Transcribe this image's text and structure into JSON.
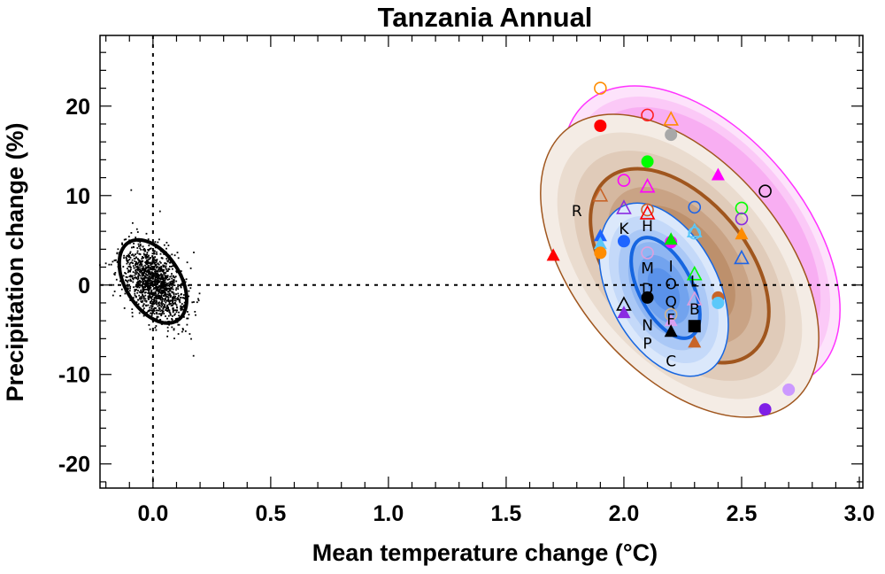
{
  "chart_data": {
    "type": "scatter",
    "title": "Tanzania Annual",
    "xlabel": "Mean temperature change (°C)",
    "ylabel": "Precipitation change (%)",
    "xlim": [
      -0.225,
      3.015
    ],
    "ylim": [
      -22.7,
      27.9
    ],
    "x_ticks": [
      "0.0",
      "0.5",
      "1.0",
      "1.5",
      "2.0",
      "2.5",
      "3.0"
    ],
    "y_ticks": [
      "-20",
      "-10",
      "0",
      "10",
      "20"
    ],
    "grid": false,
    "reference_lines": {
      "x": 0,
      "y": 0,
      "style": "dotted"
    },
    "contour_colors": {
      "brown_fills": [
        "#f4ece5",
        "#eadccf",
        "#e0cbb9",
        "#d5b8a0",
        "#c9a385",
        "#bd906c"
      ],
      "brown_line": "#a0561e",
      "blue_fills": [
        "#dbe8fb",
        "#c4d9f9",
        "#aac8f6",
        "#8fb6f2",
        "#72a3ee",
        "#5a92ea"
      ],
      "blue_line": "#1766e0",
      "magenta_fills": [
        "#fde3fb",
        "#fbc9f7",
        "#f8aef2"
      ],
      "magenta_line": "#ff33ff",
      "control_line": "#000000"
    },
    "points": [
      {
        "x": 1.9,
        "y": 22.0,
        "shape": "circle",
        "filled": false,
        "color": "#ff8c00"
      },
      {
        "x": 2.1,
        "y": 19.0,
        "shape": "circle",
        "filled": false,
        "color": "#ff2020"
      },
      {
        "x": 2.2,
        "y": 18.5,
        "shape": "triangle",
        "filled": false,
        "color": "#ff8c00"
      },
      {
        "x": 1.9,
        "y": 17.8,
        "shape": "circle",
        "filled": true,
        "color": "#ff0000"
      },
      {
        "x": 2.2,
        "y": 16.8,
        "shape": "circle",
        "filled": true,
        "color": "#a8a8a8"
      },
      {
        "x": 2.1,
        "y": 13.8,
        "shape": "circle",
        "filled": true,
        "color": "#00ff00"
      },
      {
        "x": 2.4,
        "y": 12.3,
        "shape": "triangle",
        "filled": true,
        "color": "#ff00ff"
      },
      {
        "x": 2.6,
        "y": 10.5,
        "shape": "circle",
        "filled": false,
        "color": "#000000"
      },
      {
        "x": 2.0,
        "y": 11.7,
        "shape": "circle",
        "filled": false,
        "color": "#ff00ff"
      },
      {
        "x": 2.1,
        "y": 11.0,
        "shape": "triangle",
        "filled": false,
        "color": "#ff00ff"
      },
      {
        "x": 1.9,
        "y": 10.0,
        "shape": "triangle",
        "filled": false,
        "color": "#c86428"
      },
      {
        "x": 2.0,
        "y": 8.6,
        "shape": "triangle",
        "filled": false,
        "color": "#8a2be2"
      },
      {
        "x": 2.1,
        "y": 8.4,
        "shape": "circle",
        "filled": false,
        "color": "#c86428"
      },
      {
        "x": 2.1,
        "y": 8.0,
        "shape": "triangle",
        "filled": false,
        "color": "#ff0000"
      },
      {
        "x": 2.3,
        "y": 8.7,
        "shape": "circle",
        "filled": false,
        "color": "#1e64e6"
      },
      {
        "x": 2.5,
        "y": 8.6,
        "shape": "circle",
        "filled": false,
        "color": "#00ff00"
      },
      {
        "x": 2.5,
        "y": 7.4,
        "shape": "circle",
        "filled": false,
        "color": "#8a2be2"
      },
      {
        "x": 2.3,
        "y": 5.8,
        "shape": "circle",
        "filled": false,
        "color": "#5ac8fa"
      },
      {
        "x": 2.3,
        "y": 6.0,
        "shape": "triangle",
        "filled": false,
        "color": "#5ac8fa"
      },
      {
        "x": 2.5,
        "y": 5.7,
        "shape": "triangle",
        "filled": true,
        "color": "#ff8c00"
      },
      {
        "x": 1.9,
        "y": 5.5,
        "shape": "triangle",
        "filled": true,
        "color": "#1e64ff"
      },
      {
        "x": 1.9,
        "y": 4.6,
        "shape": "triangle",
        "filled": true,
        "color": "#5ac8fa"
      },
      {
        "x": 2.0,
        "y": 4.9,
        "shape": "circle",
        "filled": true,
        "color": "#1e64ff"
      },
      {
        "x": 2.2,
        "y": 4.8,
        "shape": "circle",
        "filled": true,
        "color": "#ff00ff"
      },
      {
        "x": 2.2,
        "y": 5.1,
        "shape": "triangle",
        "filled": true,
        "color": "#00e000"
      },
      {
        "x": 1.9,
        "y": 3.6,
        "shape": "circle",
        "filled": true,
        "color": "#ff8c00"
      },
      {
        "x": 1.7,
        "y": 3.3,
        "shape": "triangle",
        "filled": true,
        "color": "#ff0000"
      },
      {
        "x": 2.5,
        "y": 3.0,
        "shape": "triangle",
        "filled": false,
        "color": "#1e64e6"
      },
      {
        "x": 2.1,
        "y": 3.6,
        "shape": "circle",
        "filled": false,
        "color": "#dda0dd"
      },
      {
        "x": 2.3,
        "y": 1.2,
        "shape": "triangle",
        "filled": false,
        "color": "#00ff00"
      },
      {
        "x": 2.4,
        "y": -1.4,
        "shape": "circle",
        "filled": true,
        "color": "#c86428"
      },
      {
        "x": 2.4,
        "y": -2.0,
        "shape": "circle",
        "filled": true,
        "color": "#5ac8fa"
      },
      {
        "x": 2.1,
        "y": -1.4,
        "shape": "circle",
        "filled": true,
        "color": "#000000"
      },
      {
        "x": 2.0,
        "y": -2.2,
        "shape": "triangle",
        "filled": false,
        "color": "#000000"
      },
      {
        "x": 2.0,
        "y": -3.1,
        "shape": "triangle",
        "filled": true,
        "color": "#8a2be2"
      },
      {
        "x": 2.3,
        "y": -1.6,
        "shape": "triangle",
        "filled": false,
        "color": "#dda0dd"
      },
      {
        "x": 2.2,
        "y": -3.3,
        "shape": "circle",
        "filled": false,
        "color": "#d2b48c"
      },
      {
        "x": 2.2,
        "y": -4.0,
        "shape": "triangle",
        "filled": true,
        "color": "#d8a0f0"
      },
      {
        "x": 2.2,
        "y": -5.2,
        "shape": "triangle",
        "filled": true,
        "color": "#000000"
      },
      {
        "x": 2.3,
        "y": -4.6,
        "shape": "square",
        "filled": true,
        "color": "#000000"
      },
      {
        "x": 2.3,
        "y": -6.4,
        "shape": "triangle",
        "filled": true,
        "color": "#c86428"
      },
      {
        "x": 2.7,
        "y": -11.7,
        "shape": "circle",
        "filled": true,
        "color": "#cc99ff"
      },
      {
        "x": 2.6,
        "y": -13.9,
        "shape": "circle",
        "filled": true,
        "color": "#7f1fe6"
      }
    ],
    "letter_labels": [
      {
        "text": "R",
        "x": 1.8,
        "y": 8.3
      },
      {
        "text": "K",
        "x": 2.0,
        "y": 6.3
      },
      {
        "text": "H",
        "x": 2.1,
        "y": 6.6
      },
      {
        "text": "M",
        "x": 2.1,
        "y": 1.9
      },
      {
        "text": "I",
        "x": 2.2,
        "y": 2.1
      },
      {
        "text": "O",
        "x": 2.2,
        "y": 1.0
      },
      {
        "text": "Q",
        "x": 2.2,
        "y": 0.0
      },
      {
        "text": "L",
        "x": 2.3,
        "y": 0.4
      },
      {
        "text": "D",
        "x": 2.1,
        "y": -0.4
      },
      {
        "text": "F",
        "x": 2.2,
        "y": -2.0
      },
      {
        "text": "B",
        "x": 2.3,
        "y": -2.7
      },
      {
        "text": "N",
        "x": 2.1,
        "y": -4.5
      },
      {
        "text": "P",
        "x": 2.1,
        "y": -6.5
      },
      {
        "text": "C",
        "x": 2.2,
        "y": -8.5
      }
    ]
  }
}
